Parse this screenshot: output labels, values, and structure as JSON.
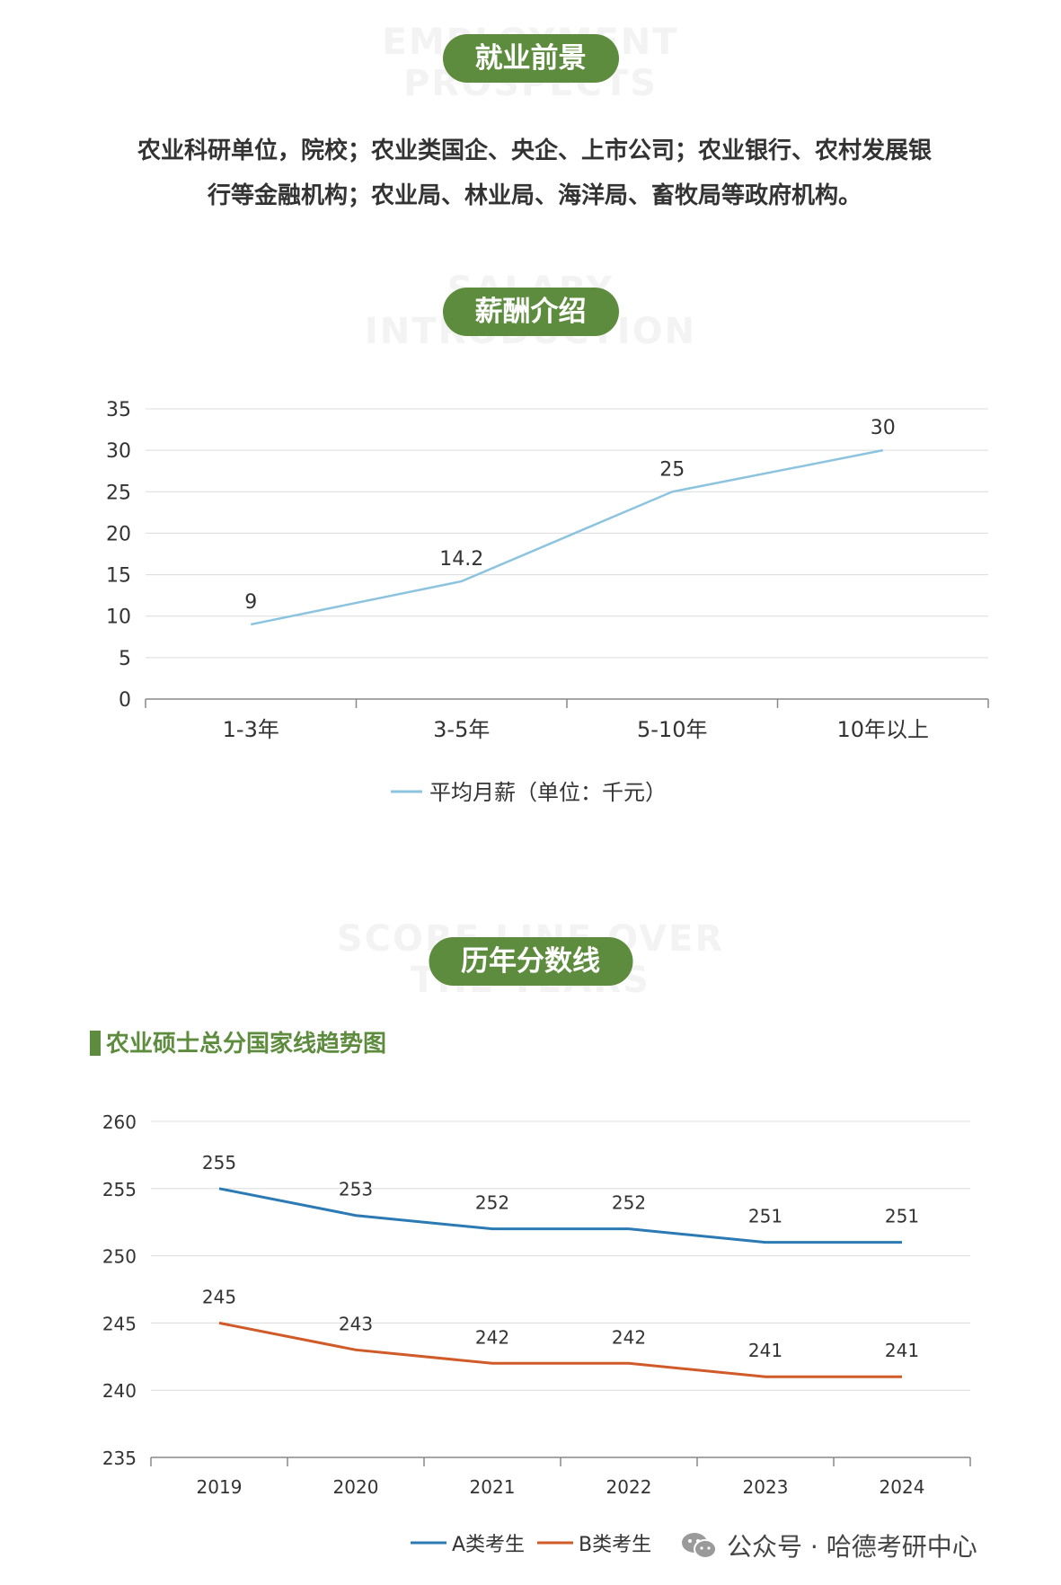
{
  "sections": {
    "employment": {
      "title": "就业前景",
      "watermark_line1": "EMPLOYMENT",
      "watermark_line2": "PROSPECTS",
      "text_line1": "农业科研单位，院校；农业类国企、央企、上市公司；农业银行、农村发展银",
      "text_line2": "行等金融机构；农业局、林业局、海洋局、畜牧局等政府机构。"
    },
    "salary": {
      "title": "薪酬介绍",
      "watermark_line1": "SALARY",
      "watermark_line2": "INTRODUCTION"
    },
    "scores": {
      "title": "历年分数线",
      "watermark_line1": "SCORE LINE OVER",
      "watermark_line2": "THE YEARS",
      "subtitle": "农业硕士总分国家线趋势图"
    }
  },
  "footer": {
    "text": "公众号 · 哈德考研中心",
    "icon": "wechat-icon"
  },
  "chart_data": [
    {
      "type": "line",
      "title": "",
      "categories": [
        "1-3年",
        "3-5年",
        "5-10年",
        "10年以上"
      ],
      "series": [
        {
          "name": "平均月薪（单位：千元）",
          "values": [
            9,
            14.2,
            25,
            30
          ],
          "color": "#8cc4e0"
        }
      ],
      "ylim": [
        0,
        35
      ],
      "yticks": [
        0,
        5,
        10,
        15,
        20,
        25,
        30,
        35
      ],
      "data_labels": [
        "9",
        "14.2",
        "25",
        "30"
      ],
      "grid": true,
      "legend": "bottom"
    },
    {
      "type": "line",
      "title": "农业硕士总分国家线趋势图",
      "categories": [
        "2019",
        "2020",
        "2021",
        "2022",
        "2023",
        "2024"
      ],
      "series": [
        {
          "name": "A类考生",
          "values": [
            255,
            253,
            252,
            252,
            251,
            251
          ],
          "color": "#2b7ab4"
        },
        {
          "name": "B类考生",
          "values": [
            245,
            243,
            242,
            242,
            241,
            241
          ],
          "color": "#d05a28"
        }
      ],
      "ylim": [
        235,
        260
      ],
      "yticks": [
        235,
        240,
        245,
        250,
        255,
        260
      ],
      "grid": true,
      "legend": "bottom"
    }
  ]
}
